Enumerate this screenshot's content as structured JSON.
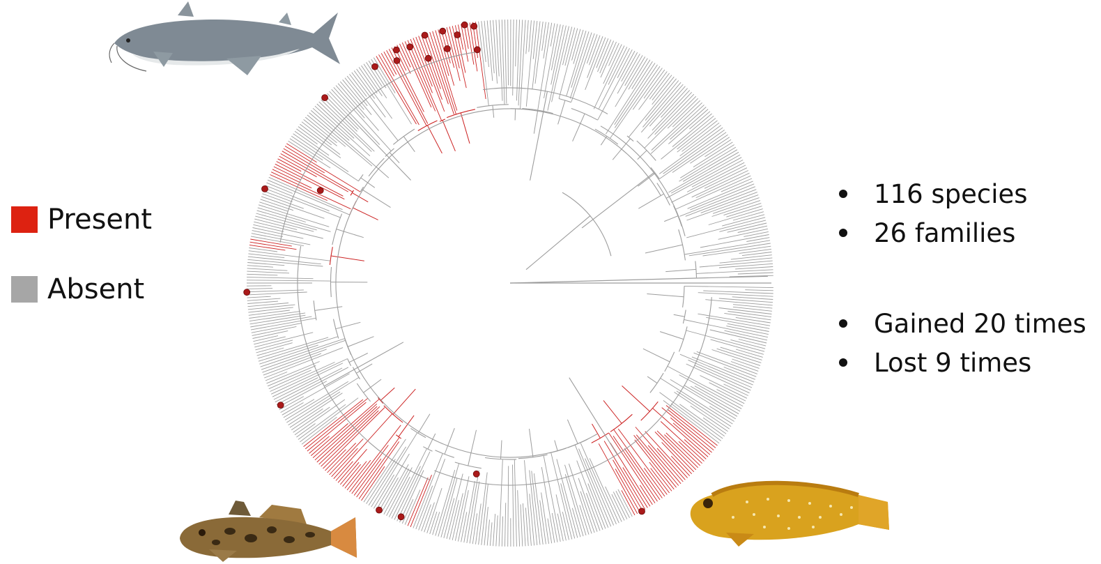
{
  "legend": {
    "present_label": "Present",
    "absent_label": "Absent",
    "present_color": "#dd2211",
    "absent_color": "#a6a6a6"
  },
  "stats": {
    "species": "116 species",
    "families": "26 families",
    "gained": "Gained 20 times",
    "lost": "Lost 9 times"
  },
  "tree": {
    "branch_color": "#9c9c9c",
    "trait_color": "#cc2222",
    "node_color": "#aa1a1a"
  },
  "images": [
    {
      "name": "catfish-illustration",
      "color": "#7d8893"
    },
    {
      "name": "goby-photo",
      "color": "#8a6a38"
    },
    {
      "name": "blenny-photo",
      "color": "#d9a21e"
    }
  ]
}
